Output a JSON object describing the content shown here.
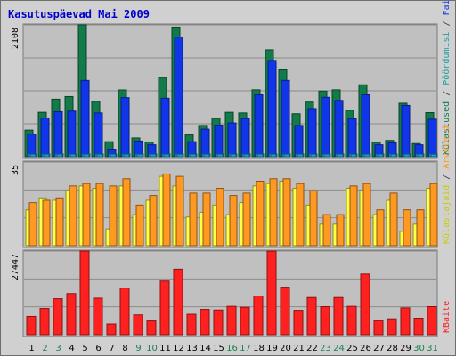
{
  "title": "Kasutuspäevad Mai 2009",
  "colors": {
    "title": "#0000cc",
    "panel_bg": "#c0c0c0",
    "frame_bg": "#d0d0d0",
    "visits": "#137a4a",
    "pages": "#1136ea",
    "files": "#1ea0e0",
    "hits": "#ffff44",
    "host": "#ff9922",
    "kb": "#ff2020",
    "weekday_label": "#000000",
    "weekend_label": "#1a8050"
  },
  "panel_max_labels": {
    "top": "2108",
    "middle": "35",
    "bottom": "27447"
  },
  "side_labels": {
    "top": [
      {
        "text": "Külastused",
        "color": "#137a4a"
      },
      {
        "text": " / ",
        "color": "#333333"
      },
      {
        "text": "Pöördumisi",
        "color": "#1ea0a0"
      },
      {
        "text": " / ",
        "color": "#333333"
      },
      {
        "text": "Faile",
        "color": "#1136ea"
      },
      {
        "text": " / ",
        "color": "#333333"
      },
      {
        "text": "Päringuid",
        "color": "#1ea0e0"
      }
    ],
    "middle": [
      {
        "text": "Külastajaid",
        "color": "#cccc00"
      },
      {
        "text": " / ",
        "color": "#333333"
      },
      {
        "text": "Arvuteid",
        "color": "#ff9922"
      }
    ],
    "bottom": [
      {
        "text": "KBaite",
        "color": "#ff2020"
      }
    ]
  },
  "chart_data": [
    {
      "type": "bar",
      "title": "Kasutuspäevad Mai 2009",
      "ylim": [
        0,
        2108
      ],
      "categories": [
        "1",
        "2",
        "3",
        "4",
        "5",
        "6",
        "7",
        "8",
        "9",
        "10",
        "11",
        "12",
        "13",
        "14",
        "15",
        "16",
        "17",
        "18",
        "19",
        "20",
        "21",
        "22",
        "23",
        "24",
        "25",
        "26",
        "27",
        "28",
        "29",
        "30",
        "31"
      ],
      "weekend": [
        false,
        true,
        true,
        false,
        false,
        false,
        false,
        false,
        true,
        true,
        false,
        false,
        false,
        false,
        false,
        true,
        true,
        false,
        false,
        false,
        false,
        false,
        true,
        true,
        false,
        false,
        false,
        false,
        false,
        true,
        true
      ],
      "series": [
        {
          "values": [
            425,
            710,
            920,
            962,
            2108,
            885,
            240,
            1068,
            300,
            233,
            1268,
            2073,
            348,
            500,
            613,
            710,
            700,
            1070,
            1710,
            1390,
            687,
            873,
            1050,
            1070,
            742,
            1150,
            230,
            260,
            855,
            210,
            705
          ]
        },
        {
          "values": [
            360,
            620,
            720,
            730,
            1220,
            700,
            120,
            945,
            250,
            190,
            935,
            1915,
            240,
            440,
            505,
            540,
            610,
            990,
            1540,
            1220,
            500,
            770,
            950,
            900,
            610,
            990,
            190,
            220,
            820,
            190,
            600
          ]
        },
        {
          "values": [
            45,
            45,
            45,
            45,
            45,
            45,
            45,
            45,
            45,
            45,
            45,
            45,
            45,
            45,
            45,
            45,
            45,
            45,
            45,
            45,
            45,
            45,
            45,
            45,
            45,
            45,
            45,
            45,
            45,
            45,
            45
          ]
        },
        {
          "values": [
            40,
            40,
            40,
            40,
            40,
            40,
            40,
            40,
            40,
            40,
            40,
            40,
            40,
            40,
            40,
            40,
            40,
            40,
            40,
            40,
            40,
            40,
            40,
            40,
            40,
            40,
            40,
            40,
            40,
            40,
            40
          ]
        }
      ]
    },
    {
      "type": "bar",
      "ylim": [
        0,
        35
      ],
      "categories": [
        "1",
        "2",
        "3",
        "4",
        "5",
        "6",
        "7",
        "8",
        "9",
        "10",
        "11",
        "12",
        "13",
        "14",
        "15",
        "16",
        "17",
        "18",
        "19",
        "20",
        "21",
        "22",
        "23",
        "24",
        "25",
        "26",
        "27",
        "28",
        "29",
        "30",
        "31"
      ],
      "series": [
        {
          "values": [
            15,
            20,
            19,
            23,
            25,
            24,
            7,
            25,
            13,
            19,
            29,
            25,
            12,
            14,
            17,
            13,
            18,
            25,
            26,
            27,
            24,
            17,
            9,
            9,
            24,
            23,
            13,
            19,
            6,
            9,
            24
          ]
        },
        {
          "values": [
            18,
            19,
            20,
            25,
            26,
            26,
            25,
            28,
            17,
            21,
            30,
            29,
            22,
            22,
            24,
            21,
            22,
            27,
            28,
            28,
            26,
            23,
            13,
            13,
            25,
            26,
            15,
            22,
            15,
            15,
            26
          ]
        }
      ]
    },
    {
      "type": "bar",
      "ylim": [
        0,
        27447
      ],
      "categories": [
        "1",
        "2",
        "3",
        "4",
        "5",
        "6",
        "7",
        "8",
        "9",
        "10",
        "11",
        "12",
        "13",
        "14",
        "15",
        "16",
        "17",
        "18",
        "19",
        "20",
        "21",
        "22",
        "23",
        "24",
        "25",
        "26",
        "27",
        "28",
        "29",
        "30",
        "31"
      ],
      "series": [
        {
          "values": [
            6000,
            8600,
            11800,
            13500,
            27447,
            12000,
            3500,
            15300,
            6500,
            4500,
            17600,
            21500,
            6700,
            8300,
            8100,
            9300,
            9000,
            12700,
            27400,
            15600,
            8000,
            12200,
            9200,
            12200,
            9300,
            19900,
            4600,
            5200,
            8800,
            5400,
            9200
          ]
        }
      ]
    }
  ]
}
